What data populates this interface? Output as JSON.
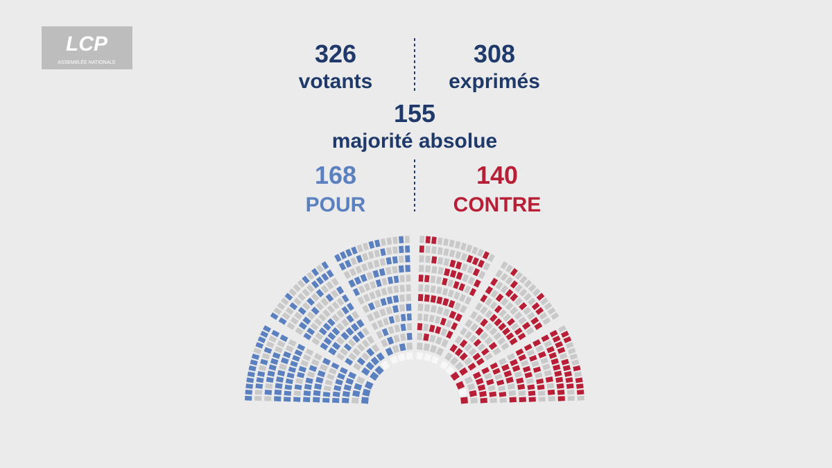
{
  "logo": {
    "name": "LCP",
    "subtitle": "ASSEMBLÉE NATIONALE"
  },
  "results": {
    "votants": {
      "value": 326,
      "label": "votants"
    },
    "exprimes": {
      "value": 308,
      "label": "exprimés"
    },
    "majorite": {
      "value": 155,
      "label": "majorité absolue"
    },
    "pour": {
      "value": 168,
      "label": "POUR",
      "color": "#5b80bf"
    },
    "contre": {
      "value": 140,
      "label": "CONTRE",
      "color": "#b81e35"
    }
  }
}
